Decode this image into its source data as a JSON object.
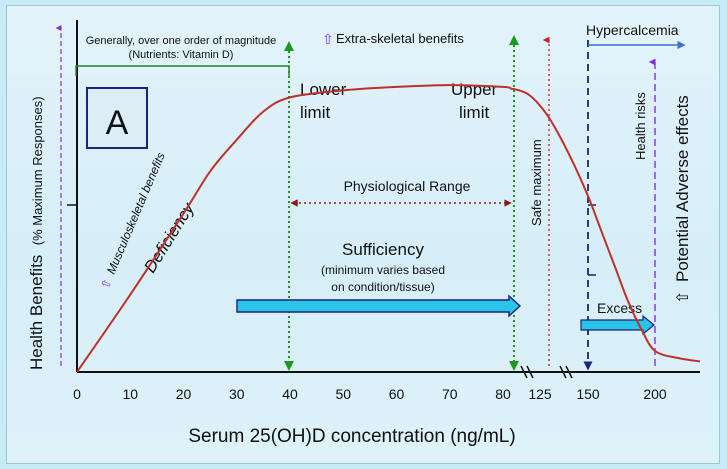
{
  "chart_data": {
    "type": "line",
    "panel_label": "A",
    "xlabel": "Serum 25(OH)D concentration (ng/mL)",
    "ylabel_main": "Health Benefits",
    "ylabel_sub": "(% Maximum Responses)",
    "x_ticks": [
      "0",
      "10",
      "20",
      "30",
      "40",
      "50",
      "60",
      "70",
      "80",
      "125",
      "150",
      "200"
    ],
    "x_tick_values": [
      0,
      10,
      20,
      30,
      40,
      50,
      60,
      70,
      80,
      125,
      150,
      200
    ],
    "x_axis_note": "scale breaks after 80 (discontinuous axis)",
    "ylim": [
      0,
      100
    ],
    "series": [
      {
        "x": [
          0,
          10,
          20,
          25,
          30,
          35,
          40,
          50,
          60,
          70,
          80,
          90,
          100,
          110,
          120,
          130,
          140,
          150,
          160,
          170,
          180,
          190,
          200,
          210,
          220
        ],
        "y": [
          0,
          22,
          45,
          57,
          66,
          74,
          78,
          80,
          81,
          81.5,
          81,
          80.5,
          80,
          79,
          77,
          72,
          62,
          50,
          40,
          30,
          20,
          12,
          6,
          4,
          3
        ],
        "color": "#c0302a"
      }
    ],
    "annotations": {
      "magnitude_note_1": "Generally, over one order of magnitude",
      "magnitude_note_2": "(Nutrients: Vitamin D)",
      "extra_skeletal": "Extra-skeletal benefits",
      "lower_limit_1": "Lower",
      "lower_limit_2": "limit",
      "upper_limit_1": "Upper",
      "upper_limit_2": "limit",
      "physiological_range": "Physiological Range",
      "sufficiency": "Sufficiency",
      "sufficiency_note_1": "(minimum varies based",
      "sufficiency_note_2": "on condition/tissue)",
      "musculoskeletal": "Musculoskeletal benefits",
      "deficiency": "Deficiency",
      "safe_maximum": "Safe maximum",
      "hypercalcemia": "Hypercalcemia",
      "health_risks": "Health risks",
      "potential_adverse": "Potential  Adverse effects",
      "excess": "Excess",
      "arrow_glyph": "⇧"
    },
    "colors": {
      "curve": "#c0302a",
      "limit_lines": "#1a9a1a",
      "safe_maximum_line": "#d02020",
      "hypercalcemia_line": "#1a237e",
      "purple_lines": "#8a2be2",
      "hypercalcemia_arrow": "#3f6fd0",
      "block_arrow": "#2bc4e6",
      "physio_arrow": "#8b1a1a",
      "magnitude_bracket": "#2e7d32"
    }
  }
}
